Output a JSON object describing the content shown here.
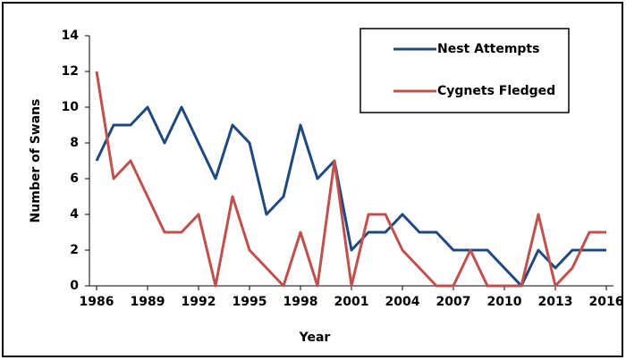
{
  "chart_data": {
    "type": "line",
    "x": [
      1986,
      1987,
      1988,
      1989,
      1990,
      1991,
      1992,
      1993,
      1994,
      1995,
      1996,
      1997,
      1998,
      1999,
      2000,
      2001,
      2002,
      2003,
      2004,
      2005,
      2006,
      2007,
      2008,
      2009,
      2010,
      2011,
      2012,
      2013,
      2014,
      2015,
      2016
    ],
    "series": [
      {
        "name": "Nest Attempts",
        "color": "#1f497d",
        "values": [
          7,
          9,
          9,
          10,
          8,
          10,
          8,
          6,
          9,
          8,
          4,
          5,
          9,
          6,
          7,
          2,
          3,
          3,
          4,
          3,
          3,
          2,
          2,
          2,
          1,
          0,
          2,
          1,
          2,
          2,
          2
        ]
      },
      {
        "name": "Cygnets Fledged",
        "color": "#c0504d",
        "values": [
          12,
          6,
          7,
          5,
          3,
          3,
          4,
          0,
          5,
          2,
          1,
          0,
          3,
          0,
          7,
          0,
          4,
          4,
          2,
          1,
          0,
          0,
          2,
          0,
          0,
          0,
          4,
          0,
          1,
          3,
          3
        ]
      }
    ],
    "xlabel": "Year",
    "ylabel": "Number of Swans",
    "xlim": [
      1986,
      2016
    ],
    "xticks": [
      1986,
      1989,
      1992,
      1995,
      1998,
      2001,
      2004,
      2007,
      2010,
      2013,
      2016
    ],
    "ylim": [
      0,
      14
    ],
    "yticks": [
      0,
      2,
      4,
      6,
      8,
      10,
      12,
      14
    ],
    "legend": "top-right"
  }
}
